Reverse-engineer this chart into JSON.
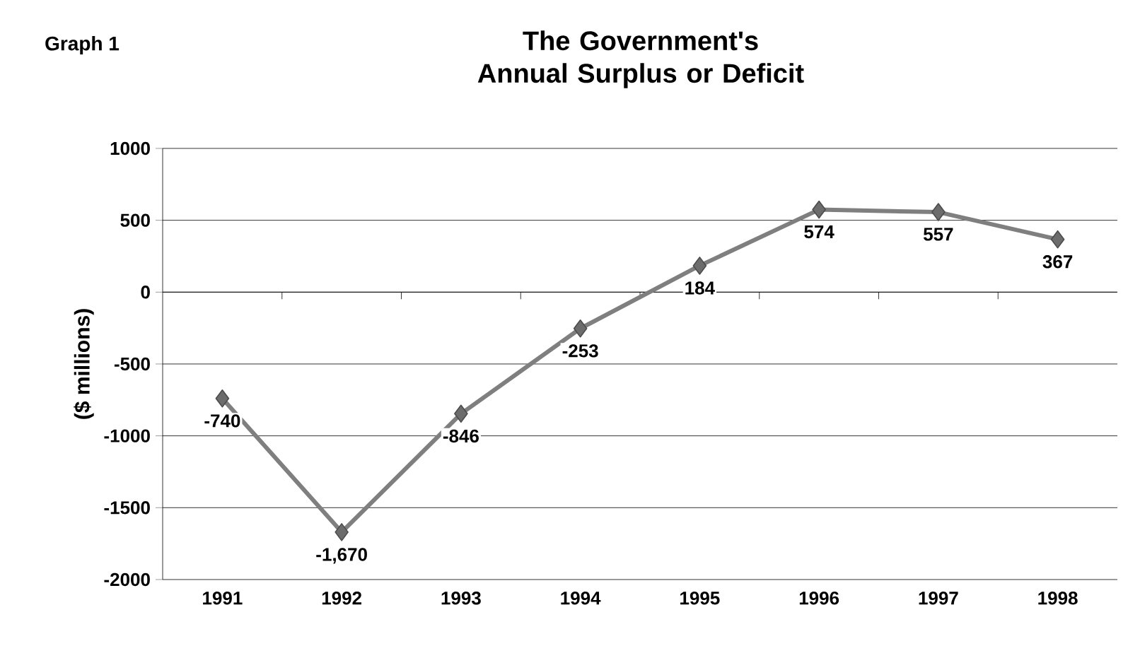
{
  "chart_data": {
    "type": "line",
    "title": "The Government's Annual Surplus or Deficit",
    "ylabel": "($ millions)",
    "annotations": [
      "Graph 1"
    ],
    "categories": [
      "1991",
      "1992",
      "1993",
      "1994",
      "1995",
      "1996",
      "1997",
      "1998"
    ],
    "series": [
      {
        "color": "#7f7f7f",
        "values": [
          -740,
          -1670,
          -846,
          -253,
          184,
          574,
          557,
          367
        ],
        "value_labels": [
          "-740",
          "-1,670",
          "-846",
          "-253",
          "184",
          "574",
          "557",
          "367"
        ]
      }
    ],
    "ylim": [
      -2000,
      1000
    ],
    "yticks": [
      -2000,
      -1500,
      -1000,
      -500,
      0,
      500,
      1000
    ],
    "grid": "y",
    "marker": "diamond",
    "line_style": "solid"
  }
}
